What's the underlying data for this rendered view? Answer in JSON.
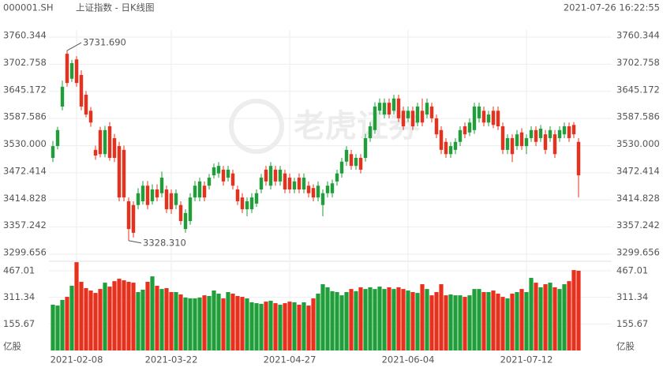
{
  "header": {
    "symbol": "000001.SH",
    "name": "上证指数 - 日K线图",
    "time": "2021-07-26 16:22:55"
  },
  "watermark": "老虎证券",
  "chart_data": {
    "type": "candlestick",
    "categories": [
      null,
      null,
      null,
      null,
      null,
      "2021-02-08",
      null,
      null,
      null,
      null,
      null,
      null,
      null,
      null,
      null,
      null,
      null,
      null,
      null,
      null,
      null,
      null,
      null,
      null,
      null,
      "2021-03-22",
      null,
      null,
      null,
      null,
      null,
      null,
      null,
      null,
      null,
      null,
      null,
      null,
      null,
      null,
      null,
      null,
      null,
      null,
      null,
      null,
      null,
      null,
      null,
      null,
      "2021-04-27",
      null,
      null,
      null,
      null,
      null,
      null,
      null,
      null,
      null,
      null,
      null,
      null,
      null,
      null,
      null,
      null,
      null,
      null,
      null,
      null,
      null,
      null,
      null,
      null,
      "2021-06-04",
      null,
      null,
      null,
      null,
      null,
      null,
      null,
      null,
      null,
      null,
      null,
      null,
      null,
      null,
      null,
      null,
      null,
      null,
      null,
      null,
      null,
      null,
      null,
      null,
      "2021-07-12",
      null,
      null,
      null,
      null,
      null,
      null,
      null,
      null,
      null,
      null,
      null
    ],
    "ohlc": [
      [
        3504,
        3540,
        3495,
        3529
      ],
      [
        3529,
        3570,
        3522,
        3563
      ],
      [
        3613,
        3668,
        3605,
        3655
      ],
      [
        3725,
        3731.69,
        3655,
        3663
      ],
      [
        3672,
        3712,
        3665,
        3705
      ],
      [
        3713,
        3720,
        3655,
        3663
      ],
      [
        3680,
        3690,
        3605,
        3613
      ],
      [
        3638,
        3646,
        3590,
        3596
      ],
      [
        3604,
        3612,
        3570,
        3579
      ],
      [
        3521,
        3530,
        3500,
        3509
      ],
      [
        3563,
        3570,
        3505,
        3512
      ],
      [
        3512,
        3572,
        3505,
        3563
      ],
      [
        3571,
        3580,
        3498,
        3504
      ],
      [
        3546,
        3555,
        3495,
        3504
      ],
      [
        3529,
        3538,
        3412,
        3420
      ],
      [
        3521,
        3530,
        3412,
        3420
      ],
      [
        3412,
        3420,
        3328.31,
        3353
      ],
      [
        3404,
        3412,
        3335,
        3345
      ],
      [
        3404,
        3440,
        3395,
        3429
      ],
      [
        3412,
        3455,
        3405,
        3445
      ],
      [
        3445,
        3455,
        3395,
        3404
      ],
      [
        3412,
        3448,
        3405,
        3437
      ],
      [
        3437,
        3448,
        3412,
        3420
      ],
      [
        3429,
        3475,
        3420,
        3462
      ],
      [
        3437,
        3445,
        3387,
        3395
      ],
      [
        3429,
        3437,
        3385,
        3395
      ],
      [
        3404,
        3437,
        3395,
        3429
      ],
      [
        3404,
        3412,
        3362,
        3370
      ],
      [
        3353,
        3395,
        3345,
        3387
      ],
      [
        3370,
        3429,
        3362,
        3420
      ],
      [
        3420,
        3455,
        3412,
        3445
      ],
      [
        3420,
        3462,
        3412,
        3454
      ],
      [
        3445,
        3454,
        3412,
        3420
      ],
      [
        3445,
        3470,
        3437,
        3462
      ],
      [
        3467,
        3492,
        3460,
        3484
      ],
      [
        3471,
        3495,
        3462,
        3487
      ],
      [
        3479,
        3487,
        3445,
        3454
      ],
      [
        3462,
        3487,
        3454,
        3479
      ],
      [
        3471,
        3479,
        3437,
        3445
      ],
      [
        3437,
        3445,
        3404,
        3412
      ],
      [
        3420,
        3429,
        3387,
        3395
      ],
      [
        3395,
        3420,
        3380,
        3412
      ],
      [
        3395,
        3429,
        3387,
        3420
      ],
      [
        3407,
        3437,
        3400,
        3429
      ],
      [
        3437,
        3470,
        3429,
        3462
      ],
      [
        3479,
        3487,
        3445,
        3454
      ],
      [
        3445,
        3495,
        3437,
        3487
      ],
      [
        3479,
        3487,
        3445,
        3454
      ],
      [
        3454,
        3487,
        3445,
        3479
      ],
      [
        3471,
        3479,
        3429,
        3437
      ],
      [
        3462,
        3471,
        3429,
        3437
      ],
      [
        3437,
        3462,
        3429,
        3454
      ],
      [
        3462,
        3471,
        3429,
        3437
      ],
      [
        3437,
        3471,
        3429,
        3462
      ],
      [
        3445,
        3454,
        3420,
        3429
      ],
      [
        3440,
        3448,
        3412,
        3420
      ],
      [
        3420,
        3454,
        3412,
        3445
      ],
      [
        3404,
        3437,
        3380,
        3429
      ],
      [
        3429,
        3454,
        3420,
        3445
      ],
      [
        3429,
        3458,
        3420,
        3450
      ],
      [
        3454,
        3479,
        3445,
        3471
      ],
      [
        3471,
        3504,
        3462,
        3496
      ],
      [
        3496,
        3529,
        3487,
        3521
      ],
      [
        3512,
        3521,
        3479,
        3487
      ],
      [
        3487,
        3512,
        3479,
        3504
      ],
      [
        3504,
        3512,
        3471,
        3479
      ],
      [
        3504,
        3555,
        3496,
        3546
      ],
      [
        3546,
        3580,
        3538,
        3571
      ],
      [
        3563,
        3622,
        3555,
        3613
      ],
      [
        3604,
        3630,
        3596,
        3621
      ],
      [
        3596,
        3630,
        3588,
        3621
      ],
      [
        3621,
        3630,
        3588,
        3596
      ],
      [
        3604,
        3638,
        3596,
        3630
      ],
      [
        3630,
        3638,
        3580,
        3588
      ],
      [
        3604,
        3613,
        3563,
        3571
      ],
      [
        3588,
        3613,
        3580,
        3604
      ],
      [
        3604,
        3613,
        3563,
        3571
      ],
      [
        3579,
        3621,
        3571,
        3613
      ],
      [
        3604,
        3630,
        3571,
        3579
      ],
      [
        3596,
        3630,
        3588,
        3621
      ],
      [
        3613,
        3621,
        3579,
        3588
      ],
      [
        3588,
        3596,
        3546,
        3554
      ],
      [
        3563,
        3571,
        3512,
        3521
      ],
      [
        3538,
        3546,
        3504,
        3512
      ],
      [
        3512,
        3538,
        3504,
        3529
      ],
      [
        3521,
        3546,
        3512,
        3538
      ],
      [
        3538,
        3571,
        3529,
        3563
      ],
      [
        3571,
        3579,
        3546,
        3554
      ],
      [
        3558,
        3588,
        3550,
        3579
      ],
      [
        3563,
        3621,
        3555,
        3613
      ],
      [
        3588,
        3621,
        3579,
        3613
      ],
      [
        3604,
        3613,
        3571,
        3579
      ],
      [
        3579,
        3604,
        3571,
        3596
      ],
      [
        3604,
        3613,
        3567,
        3574
      ],
      [
        3604,
        3613,
        3563,
        3571
      ],
      [
        3571,
        3579,
        3512,
        3521
      ],
      [
        3521,
        3554,
        3512,
        3546
      ],
      [
        3546,
        3554,
        3495,
        3512
      ],
      [
        3529,
        3563,
        3521,
        3554
      ],
      [
        3558,
        3567,
        3521,
        3529
      ],
      [
        3529,
        3554,
        3512,
        3546
      ],
      [
        3546,
        3571,
        3538,
        3563
      ],
      [
        3563,
        3571,
        3529,
        3538
      ],
      [
        3546,
        3574,
        3538,
        3566
      ],
      [
        3554,
        3563,
        3512,
        3521
      ],
      [
        3546,
        3571,
        3538,
        3563
      ],
      [
        3554,
        3563,
        3504,
        3512
      ],
      [
        3546,
        3571,
        3538,
        3563
      ],
      [
        3554,
        3579,
        3546,
        3571
      ],
      [
        3571,
        3579,
        3538,
        3546
      ],
      [
        3574,
        3580,
        3546,
        3554
      ],
      [
        3538,
        3546,
        3420,
        3467
      ]
    ],
    "volumes": [
      268,
      263,
      296,
      314,
      379,
      517,
      402,
      365,
      351,
      337,
      360,
      397,
      374,
      406,
      420,
      411,
      402,
      397,
      342,
      356,
      402,
      434,
      379,
      360,
      365,
      342,
      342,
      328,
      310,
      305,
      305,
      310,
      323,
      319,
      351,
      333,
      305,
      342,
      333,
      319,
      314,
      305,
      282,
      277,
      273,
      286,
      291,
      277,
      268,
      277,
      286,
      282,
      268,
      282,
      263,
      305,
      333,
      388,
      370,
      347,
      342,
      323,
      342,
      360,
      347,
      370,
      360,
      370,
      360,
      374,
      360,
      370,
      360,
      370,
      360,
      351,
      342,
      337,
      388,
      360,
      323,
      342,
      388,
      323,
      328,
      323,
      323,
      314,
      323,
      360,
      360,
      342,
      342,
      351,
      333,
      314,
      305,
      333,
      342,
      360,
      342,
      425,
      397,
      370,
      388,
      397,
      370,
      360,
      388,
      406,
      471,
      467
    ],
    "up_color": "#1f9e3a",
    "down_color": "#e8301c",
    "ylim": [
      3299.656,
      3760.344
    ],
    "yticks": [
      {
        "value": 3299.656,
        "label": "3299.656"
      },
      {
        "value": 3357.242,
        "label": "3357.242"
      },
      {
        "value": 3414.828,
        "label": "3414.828"
      },
      {
        "value": 3472.414,
        "label": "3472.414"
      },
      {
        "value": 3530,
        "label": "3530.000"
      },
      {
        "value": 3587.586,
        "label": "3587.586"
      },
      {
        "value": 3645.172,
        "label": "3645.172"
      },
      {
        "value": 3702.758,
        "label": "3702.758"
      },
      {
        "value": 3760.344,
        "label": "3760.344"
      }
    ],
    "y2lim": [
      0,
      520
    ],
    "y2ticks": [
      155.67,
      311.34,
      467.01
    ],
    "volume_unit": "亿股",
    "high_label": "3731.690",
    "low_label": "3328.310",
    "grid": true
  }
}
